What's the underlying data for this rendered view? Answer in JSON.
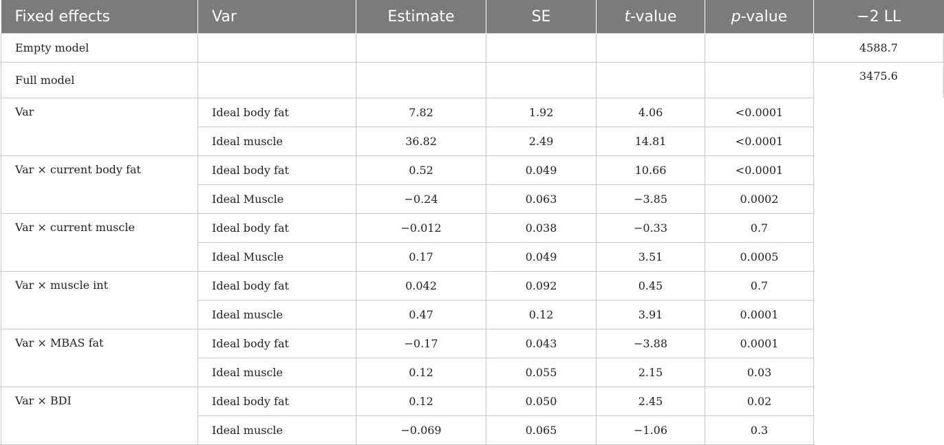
{
  "table": {
    "headers": {
      "fixed_effects": "Fixed effects",
      "var": "Var",
      "estimate": "Estimate",
      "se": "SE",
      "t_italic": "t",
      "t_suffix": "-value",
      "p_italic": "p",
      "p_suffix": "-value",
      "ll": "−2 LL"
    },
    "models": [
      {
        "label": "Empty model",
        "ll": "4588.7"
      },
      {
        "label": "Full model",
        "ll": "3475.6"
      }
    ],
    "groups": [
      {
        "effect": "Var",
        "rows": [
          {
            "var": "Ideal body fat",
            "estimate": "7.82",
            "se": "1.92",
            "t": "4.06",
            "p": "<0.0001"
          },
          {
            "var": "Ideal muscle",
            "estimate": "36.82",
            "se": "2.49",
            "t": "14.81",
            "p": "<0.0001"
          }
        ]
      },
      {
        "effect": "Var × current body fat",
        "rows": [
          {
            "var": "Ideal body fat",
            "estimate": "0.52",
            "se": "0.049",
            "t": "10.66",
            "p": "<0.0001"
          },
          {
            "var": "Ideal Muscle",
            "estimate": "−0.24",
            "se": "0.063",
            "t": "−3.85",
            "p": "0.0002"
          }
        ]
      },
      {
        "effect": "Var × current muscle",
        "rows": [
          {
            "var": "Ideal body fat",
            "estimate": "−0.012",
            "se": "0.038",
            "t": "−0.33",
            "p": "0.7"
          },
          {
            "var": "Ideal Muscle",
            "estimate": "0.17",
            "se": "0.049",
            "t": "3.51",
            "p": "0.0005"
          }
        ]
      },
      {
        "effect": "Var × muscle int",
        "rows": [
          {
            "var": "Ideal body fat",
            "estimate": "0.042",
            "se": "0.092",
            "t": "0.45",
            "p": "0.7"
          },
          {
            "var": "Ideal muscle",
            "estimate": "0.47",
            "se": "0.12",
            "t": "3.91",
            "p": "0.0001"
          }
        ]
      },
      {
        "effect": "Var × MBAS fat",
        "rows": [
          {
            "var": "Ideal body fat",
            "estimate": "−0.17",
            "se": "0.043",
            "t": "−3.88",
            "p": "0.0001"
          },
          {
            "var": "Ideal muscle",
            "estimate": "0.12",
            "se": "0.055",
            "t": "2.15",
            "p": "0.03"
          }
        ]
      },
      {
        "effect": "Var × BDI",
        "rows": [
          {
            "var": "Ideal body fat",
            "estimate": "0.12",
            "se": "0.050",
            "t": "2.45",
            "p": "0.02"
          },
          {
            "var": "Ideal muscle",
            "estimate": "−0.069",
            "se": "0.065",
            "t": "−1.06",
            "p": "0.3"
          }
        ]
      }
    ]
  }
}
